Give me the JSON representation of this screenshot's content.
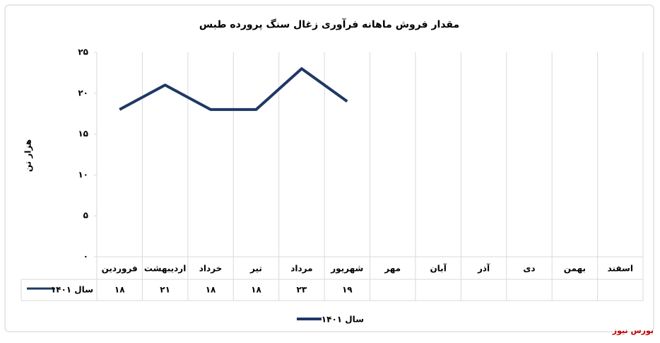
{
  "chart_data": {
    "type": "line",
    "title": "مقدار فروش ماهانه فرآوری زغال سنگ پرورده طبس",
    "y_label": "هزار تن",
    "categories": [
      "فروردین",
      "اردیبهشت",
      "خرداد",
      "تیر",
      "مرداد",
      "شهریور",
      "مهر",
      "آبان",
      "آذر",
      "دی",
      "بهمن",
      "اسفند"
    ],
    "series": [
      {
        "name": "سال ۱۴۰۱",
        "color": "#1f3864",
        "values": [
          18,
          21,
          18,
          18,
          23,
          19,
          null,
          null,
          null,
          null,
          null,
          null
        ],
        "value_labels": [
          "۱۸",
          "۲۱",
          "۱۸",
          "۱۸",
          "۲۳",
          "۱۹",
          null,
          null,
          null,
          null,
          null,
          null
        ]
      }
    ],
    "ylim": [
      0,
      25
    ],
    "yticks": [
      {
        "value": 0,
        "label": "۰"
      },
      {
        "value": 5,
        "label": "۵"
      },
      {
        "value": 10,
        "label": "۱۰"
      },
      {
        "value": 15,
        "label": "۱۵"
      },
      {
        "value": 20,
        "label": "۲۰"
      },
      {
        "value": 25,
        "label": "۲۵"
      }
    ],
    "legend": "bottom",
    "source": "بورس نیوز"
  }
}
